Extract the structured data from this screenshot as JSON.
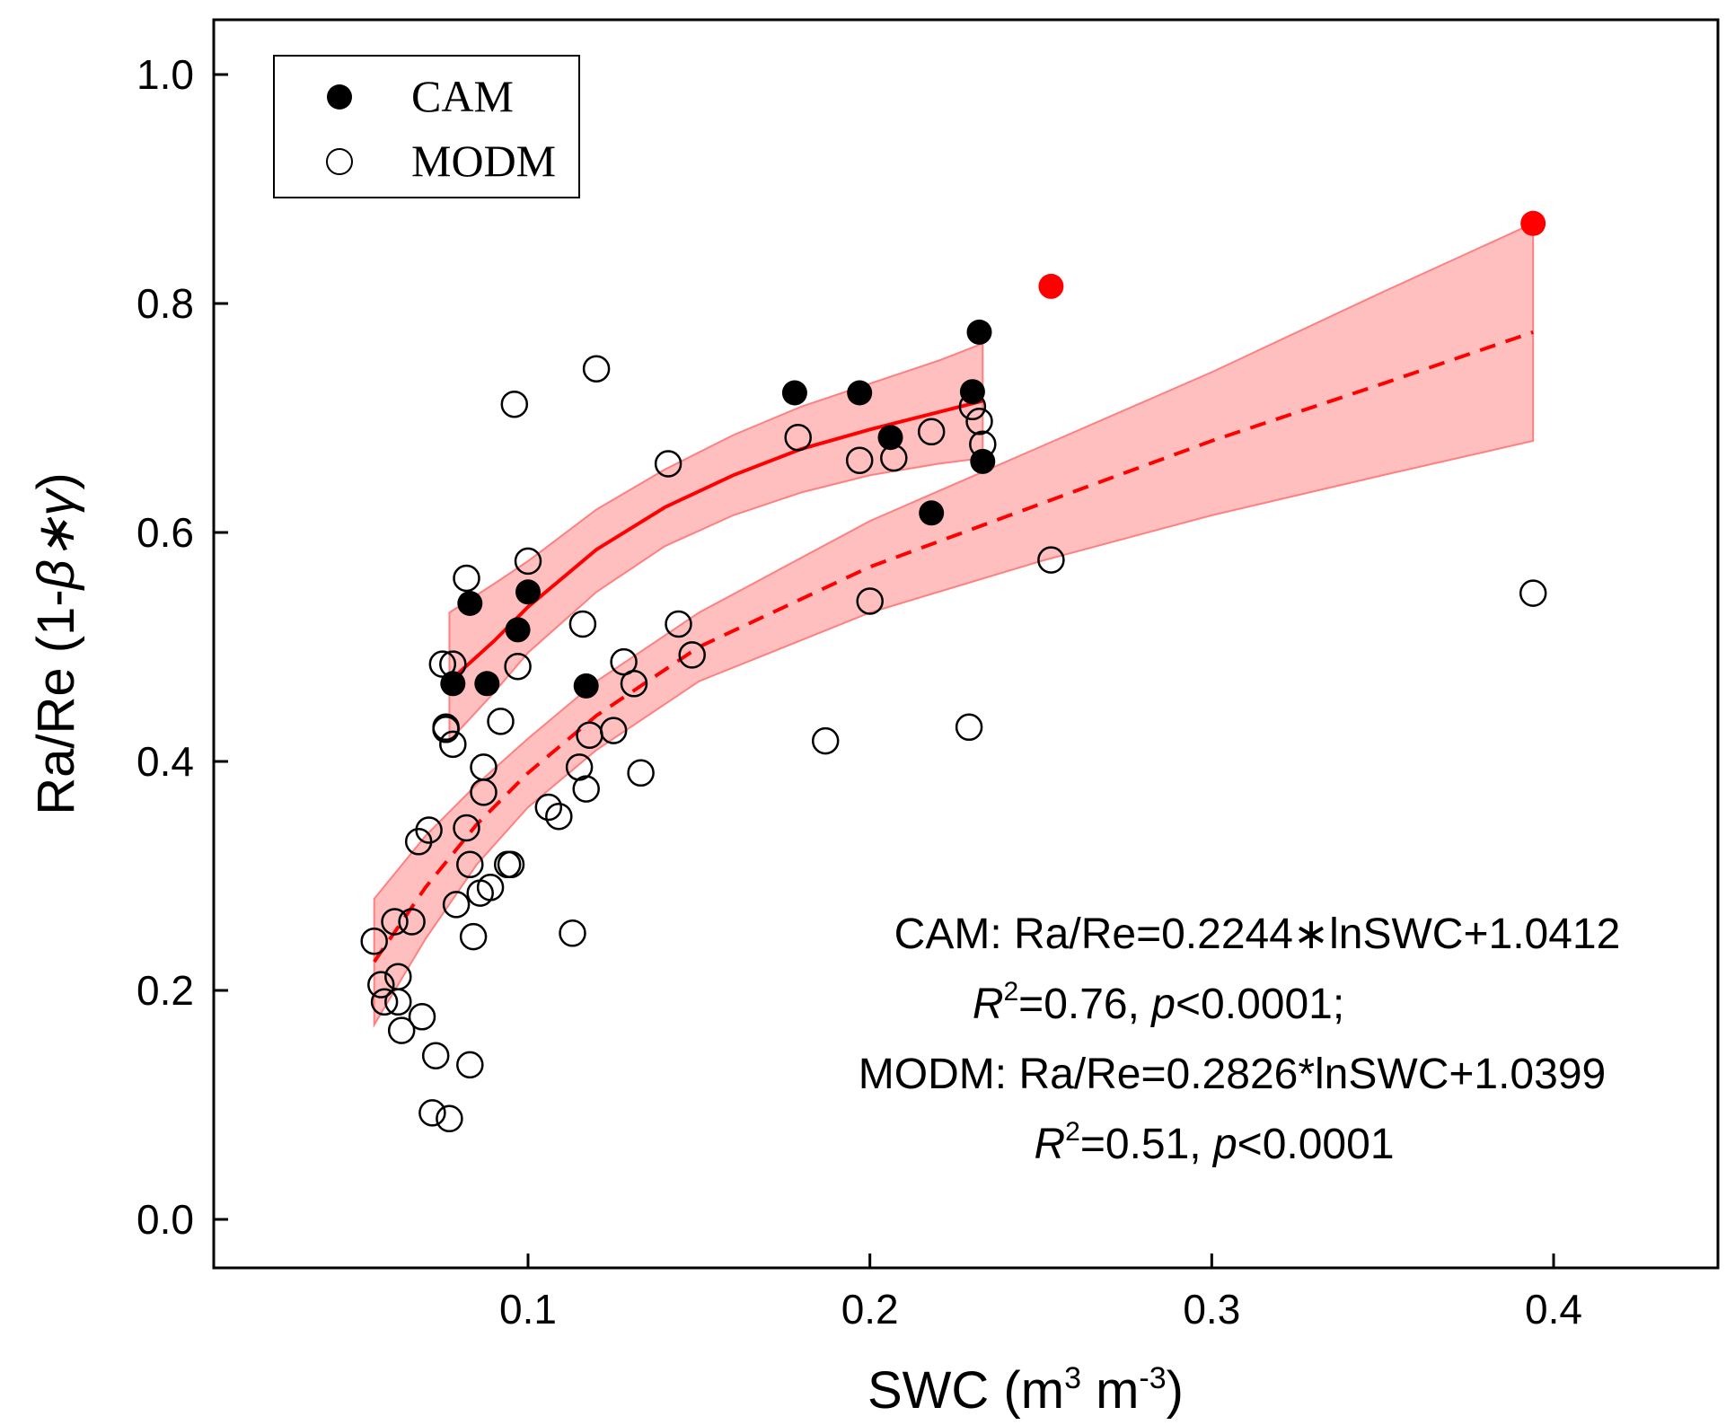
{
  "chart_data": {
    "type": "scatter",
    "xlabel": "SWC (m³ m⁻³)",
    "xlabel_parts": {
      "pre": "SWC (m",
      "sup1": "3",
      "mid": " m",
      "sup2": "-3",
      "post": ")"
    },
    "ylabel": "Ra/Re (1-β*γ)",
    "ylabel_parts": {
      "pre": "Ra/Re (1-",
      "italic": "β∗γ",
      "post": ")"
    },
    "xlim": [
      0.01,
      0.45
    ],
    "ylim": [
      -0.1,
      1.05
    ],
    "x_ticks": [
      0.1,
      0.2,
      0.3,
      0.4
    ],
    "x_tick_labels": [
      "0.1",
      "0.2",
      "0.3",
      "0.4"
    ],
    "y_ticks": [
      0.0,
      0.2,
      0.4,
      0.6,
      0.8,
      1.0
    ],
    "y_tick_labels": [
      "0.0",
      "0.2",
      "0.4",
      "0.6",
      "0.8",
      "1.0"
    ],
    "legend": {
      "position": "top-left",
      "entries": [
        {
          "label": "CAM",
          "marker": "filled-circle"
        },
        {
          "label": "MODM",
          "marker": "open-circle"
        }
      ]
    },
    "series": [
      {
        "name": "CAM",
        "marker": "filled-circle",
        "color": "#000000",
        "points": [
          [
            0.078,
            0.468
          ],
          [
            0.083,
            0.538
          ],
          [
            0.088,
            0.468
          ],
          [
            0.097,
            0.515
          ],
          [
            0.1,
            0.548
          ],
          [
            0.117,
            0.466
          ],
          [
            0.178,
            0.722
          ],
          [
            0.197,
            0.722
          ],
          [
            0.206,
            0.683
          ],
          [
            0.218,
            0.617
          ],
          [
            0.23,
            0.723
          ],
          [
            0.232,
            0.775
          ],
          [
            0.233,
            0.662
          ]
        ]
      },
      {
        "name": "MODM",
        "marker": "open-circle",
        "color": "#000000",
        "points": [
          [
            0.055,
            0.243
          ],
          [
            0.057,
            0.205
          ],
          [
            0.058,
            0.19
          ],
          [
            0.061,
            0.26
          ],
          [
            0.062,
            0.212
          ],
          [
            0.062,
            0.19
          ],
          [
            0.063,
            0.165
          ],
          [
            0.066,
            0.26
          ],
          [
            0.068,
            0.33
          ],
          [
            0.069,
            0.177
          ],
          [
            0.071,
            0.34
          ],
          [
            0.072,
            0.093
          ],
          [
            0.073,
            0.143
          ],
          [
            0.075,
            0.485
          ],
          [
            0.076,
            0.43
          ],
          [
            0.076,
            0.428
          ],
          [
            0.077,
            0.088
          ],
          [
            0.078,
            0.485
          ],
          [
            0.078,
            0.415
          ],
          [
            0.079,
            0.275
          ],
          [
            0.082,
            0.56
          ],
          [
            0.082,
            0.342
          ],
          [
            0.083,
            0.31
          ],
          [
            0.083,
            0.135
          ],
          [
            0.084,
            0.247
          ],
          [
            0.086,
            0.285
          ],
          [
            0.087,
            0.395
          ],
          [
            0.087,
            0.373
          ],
          [
            0.089,
            0.29
          ],
          [
            0.092,
            0.435
          ],
          [
            0.094,
            0.31
          ],
          [
            0.095,
            0.31
          ],
          [
            0.096,
            0.712
          ],
          [
            0.097,
            0.483
          ],
          [
            0.1,
            0.575
          ],
          [
            0.106,
            0.36
          ],
          [
            0.109,
            0.352
          ],
          [
            0.113,
            0.25
          ],
          [
            0.115,
            0.395
          ],
          [
            0.116,
            0.52
          ],
          [
            0.117,
            0.376
          ],
          [
            0.118,
            0.423
          ],
          [
            0.12,
            0.743
          ],
          [
            0.125,
            0.427
          ],
          [
            0.128,
            0.487
          ],
          [
            0.131,
            0.468
          ],
          [
            0.133,
            0.39
          ],
          [
            0.141,
            0.66
          ],
          [
            0.144,
            0.52
          ],
          [
            0.148,
            0.493
          ],
          [
            0.179,
            0.683
          ],
          [
            0.187,
            0.418
          ],
          [
            0.197,
            0.663
          ],
          [
            0.2,
            0.54
          ],
          [
            0.207,
            0.665
          ],
          [
            0.218,
            0.688
          ],
          [
            0.229,
            0.43
          ],
          [
            0.23,
            0.71
          ],
          [
            0.232,
            0.697
          ],
          [
            0.233,
            0.677
          ],
          [
            0.253,
            0.576
          ],
          [
            0.394,
            0.547
          ]
        ]
      },
      {
        "name": "highlighted",
        "marker": "filled-circle",
        "color": "#ff0000",
        "points": [
          [
            0.253,
            0.815
          ],
          [
            0.394,
            0.87
          ]
        ]
      }
    ],
    "fits": [
      {
        "name": "CAM fit",
        "style": "solid",
        "color": "#ff0000",
        "x_range": [
          0.077,
          0.233
        ],
        "points": [
          [
            0.077,
            0.47
          ],
          [
            0.09,
            0.505
          ],
          [
            0.1,
            0.535
          ],
          [
            0.12,
            0.585
          ],
          [
            0.14,
            0.622
          ],
          [
            0.16,
            0.65
          ],
          [
            0.18,
            0.673
          ],
          [
            0.2,
            0.69
          ],
          [
            0.22,
            0.705
          ],
          [
            0.233,
            0.715
          ]
        ],
        "band_upper": [
          [
            0.077,
            0.53
          ],
          [
            0.09,
            0.555
          ],
          [
            0.1,
            0.575
          ],
          [
            0.12,
            0.62
          ],
          [
            0.14,
            0.655
          ],
          [
            0.16,
            0.685
          ],
          [
            0.18,
            0.71
          ],
          [
            0.2,
            0.73
          ],
          [
            0.22,
            0.75
          ],
          [
            0.233,
            0.765
          ]
        ],
        "band_lower": [
          [
            0.077,
            0.418
          ],
          [
            0.09,
            0.46
          ],
          [
            0.1,
            0.495
          ],
          [
            0.12,
            0.548
          ],
          [
            0.14,
            0.588
          ],
          [
            0.16,
            0.615
          ],
          [
            0.18,
            0.635
          ],
          [
            0.2,
            0.65
          ],
          [
            0.22,
            0.66
          ],
          [
            0.233,
            0.665
          ]
        ]
      },
      {
        "name": "MODM fit",
        "style": "dashed",
        "color": "#ff0000",
        "x_range": [
          0.055,
          0.394
        ],
        "points": [
          [
            0.055,
            0.225
          ],
          [
            0.07,
            0.29
          ],
          [
            0.085,
            0.345
          ],
          [
            0.1,
            0.39
          ],
          [
            0.12,
            0.44
          ],
          [
            0.15,
            0.5
          ],
          [
            0.2,
            0.57
          ],
          [
            0.25,
            0.625
          ],
          [
            0.3,
            0.68
          ],
          [
            0.35,
            0.73
          ],
          [
            0.394,
            0.775
          ]
        ],
        "band_upper": [
          [
            0.055,
            0.28
          ],
          [
            0.07,
            0.335
          ],
          [
            0.085,
            0.38
          ],
          [
            0.1,
            0.42
          ],
          [
            0.12,
            0.47
          ],
          [
            0.15,
            0.53
          ],
          [
            0.2,
            0.61
          ],
          [
            0.25,
            0.675
          ],
          [
            0.3,
            0.74
          ],
          [
            0.35,
            0.81
          ],
          [
            0.394,
            0.87
          ]
        ],
        "band_lower": [
          [
            0.055,
            0.17
          ],
          [
            0.07,
            0.245
          ],
          [
            0.085,
            0.31
          ],
          [
            0.1,
            0.36
          ],
          [
            0.12,
            0.41
          ],
          [
            0.15,
            0.47
          ],
          [
            0.2,
            0.53
          ],
          [
            0.25,
            0.575
          ],
          [
            0.3,
            0.615
          ],
          [
            0.35,
            0.65
          ],
          [
            0.394,
            0.68
          ]
        ]
      }
    ],
    "annotations": {
      "cam_equation": "CAM: Ra/Re=0.2244∗lnSWC+1.0412",
      "cam_stats": {
        "r": "R",
        "r_sup": "2",
        "r_val": "=0.76, ",
        "p": "p",
        "p_val": "<0.0001;"
      },
      "modm_equation": "MODM: Ra/Re=0.2826*lnSWC+1.0399",
      "modm_stats": {
        "r": "R",
        "r_sup": "2",
        "r_val": "=0.51, ",
        "p": "p",
        "p_val": "<0.0001"
      }
    }
  },
  "colors": {
    "fit_line": "#ff0000",
    "band_fill": "#ff8080",
    "highlight": "#ff0000",
    "marker": "#000000"
  }
}
